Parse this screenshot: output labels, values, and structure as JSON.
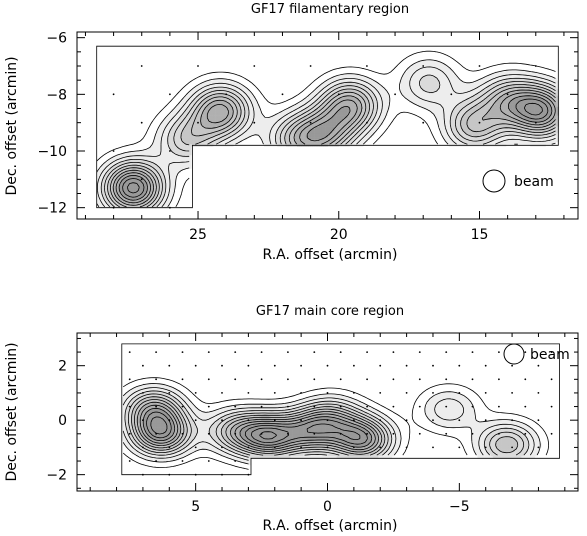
{
  "chart_data": [
    {
      "type": "contour",
      "title": "GF17 filamentary region",
      "xlabel": "R.A. offset (arcmin)",
      "ylabel": "Dec. offset (arcmin)",
      "x_direction": "decreasing",
      "xlim": [
        29.3,
        11.5
      ],
      "ylim": [
        -12.4,
        -5.8
      ],
      "xticks": [
        25,
        20,
        15
      ],
      "yticks": [
        -6,
        -8,
        -10,
        -12
      ],
      "beam_label": "beam",
      "beam_position": "lower-right",
      "observed_region": [
        [
          28.6,
          -6.3
        ],
        [
          12.2,
          -6.3
        ],
        [
          12.2,
          -9.8
        ],
        [
          25.2,
          -9.8
        ],
        [
          25.2,
          -12.0
        ],
        [
          28.6,
          -12.0
        ]
      ],
      "sample_spacing": 1.0,
      "emission_peaks": [
        {
          "x": 27.3,
          "y": -11.3,
          "intensity": 1.0
        },
        {
          "x": 24.2,
          "y": -8.6,
          "intensity": 0.75
        },
        {
          "x": 25.4,
          "y": -9.6,
          "intensity": 0.45
        },
        {
          "x": 19.6,
          "y": -8.4,
          "intensity": 0.7
        },
        {
          "x": 20.5,
          "y": -9.4,
          "intensity": 0.55
        },
        {
          "x": 21.5,
          "y": -9.6,
          "intensity": 0.45
        },
        {
          "x": 16.8,
          "y": -7.6,
          "intensity": 0.35
        },
        {
          "x": 15.2,
          "y": -9.1,
          "intensity": 0.55
        },
        {
          "x": 12.8,
          "y": -8.6,
          "intensity": 0.85
        },
        {
          "x": 14.0,
          "y": -8.2,
          "intensity": 0.5
        }
      ]
    },
    {
      "type": "contour",
      "title": "GF17 main core region",
      "xlabel": "R.A. offset (arcmin)",
      "ylabel": "Dec. offset (arcmin)",
      "x_direction": "decreasing",
      "xlim": [
        9.5,
        -9.5
      ],
      "ylim": [
        -2.6,
        3.2
      ],
      "xticks": [
        5,
        0,
        -5
      ],
      "yticks": [
        2,
        0,
        -2
      ],
      "beam_label": "beam",
      "beam_position": "upper-right",
      "observed_region": [
        [
          7.8,
          2.8
        ],
        [
          -8.8,
          2.8
        ],
        [
          -8.8,
          -1.4
        ],
        [
          2.9,
          -1.4
        ],
        [
          2.9,
          -2.0
        ],
        [
          7.8,
          -2.0
        ]
      ],
      "sample_spacing": 0.5,
      "emission_peaks": [
        {
          "x": 6.3,
          "y": -0.5,
          "intensity": 0.8
        },
        {
          "x": 6.6,
          "y": 0.4,
          "intensity": 0.6
        },
        {
          "x": 3.5,
          "y": -0.4,
          "intensity": 0.5
        },
        {
          "x": 2.2,
          "y": -0.6,
          "intensity": 0.85
        },
        {
          "x": 0.6,
          "y": -0.4,
          "intensity": 0.65
        },
        {
          "x": -1.3,
          "y": -0.7,
          "intensity": 0.85
        },
        {
          "x": -0.2,
          "y": 0.1,
          "intensity": 0.4
        },
        {
          "x": -6.8,
          "y": -0.9,
          "intensity": 0.55
        },
        {
          "x": -4.6,
          "y": 0.4,
          "intensity": 0.3
        }
      ]
    }
  ]
}
